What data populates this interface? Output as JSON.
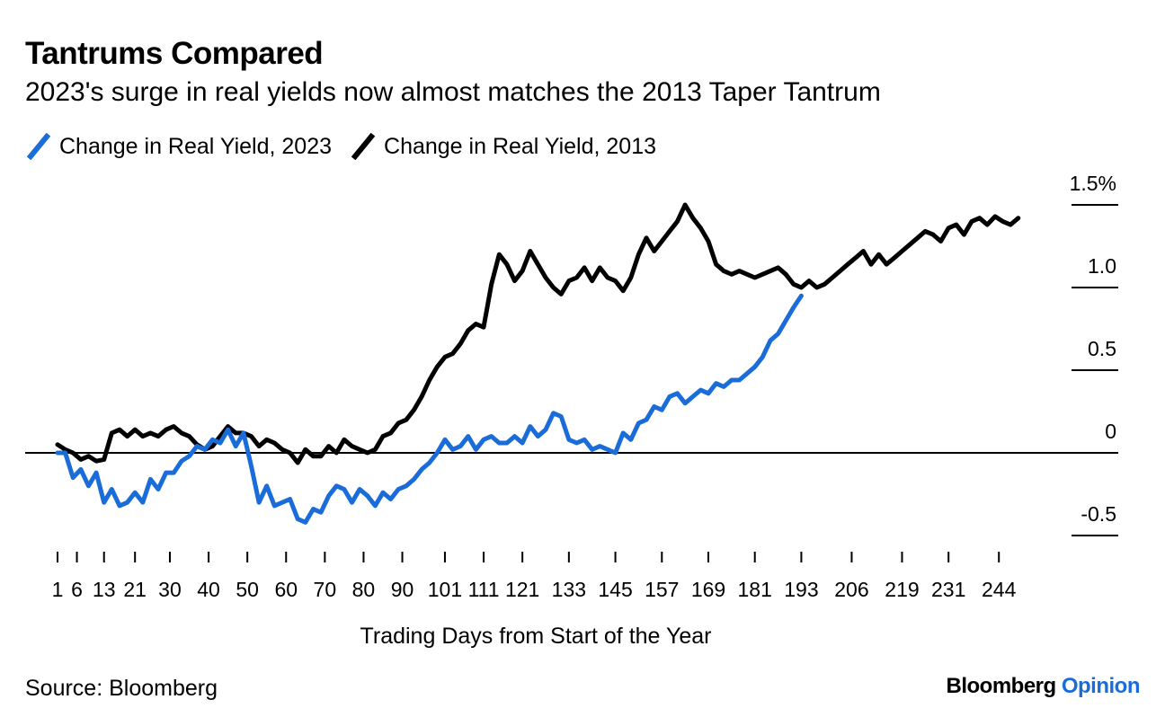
{
  "title": "Tantrums Compared",
  "subtitle": "2023's surge in real yields now almost matches the 2013 Taper Tantrum",
  "source": "Source: Bloomberg",
  "brand": {
    "name": "Bloomberg",
    "accent": "Opinion"
  },
  "colors": {
    "series_2023": "#1a6cd8",
    "series_2013": "#000000",
    "brand_accent": "#1a6cd8"
  },
  "chart_data": {
    "type": "line",
    "xlabel": "Trading Days from Start of the Year",
    "ylabel": "",
    "xlim": [
      1,
      253
    ],
    "ylim": [
      -0.5,
      1.5
    ],
    "grid": false,
    "legend_position": "top-left",
    "x_ticks": [
      1,
      6,
      13,
      21,
      30,
      40,
      50,
      60,
      70,
      80,
      90,
      101,
      111,
      121,
      133,
      145,
      157,
      169,
      181,
      193,
      206,
      219,
      231,
      244
    ],
    "y_ticks": [
      {
        "value": 1.5,
        "label": "1.5%"
      },
      {
        "value": 1.0,
        "label": "1.0"
      },
      {
        "value": 0.5,
        "label": "0.5"
      },
      {
        "value": 0,
        "label": "0"
      },
      {
        "value": -0.5,
        "label": "-0.5"
      }
    ],
    "series": [
      {
        "name": "Change in Real Yield, 2023",
        "x": [
          1,
          3,
          5,
          7,
          9,
          11,
          13,
          15,
          17,
          19,
          21,
          23,
          25,
          27,
          29,
          31,
          33,
          35,
          37,
          39,
          41,
          43,
          45,
          47,
          49,
          51,
          53,
          55,
          57,
          59,
          61,
          63,
          65,
          67,
          69,
          71,
          73,
          75,
          77,
          79,
          81,
          83,
          85,
          87,
          89,
          91,
          93,
          95,
          97,
          99,
          101,
          103,
          105,
          107,
          109,
          111,
          113,
          115,
          117,
          119,
          121,
          123,
          125,
          127,
          129,
          131,
          133,
          135,
          137,
          139,
          141,
          143,
          145,
          147,
          149,
          151,
          153,
          155,
          157,
          159,
          161,
          163,
          165,
          167,
          169,
          171,
          173,
          175,
          177,
          179,
          181,
          183,
          185,
          187,
          189,
          191,
          193
        ],
        "values": [
          0.0,
          0.0,
          -0.15,
          -0.1,
          -0.2,
          -0.12,
          -0.3,
          -0.22,
          -0.32,
          -0.3,
          -0.24,
          -0.3,
          -0.16,
          -0.22,
          -0.12,
          -0.12,
          -0.05,
          -0.02,
          0.04,
          0.02,
          0.08,
          0.06,
          0.14,
          0.04,
          0.12,
          -0.08,
          -0.3,
          -0.2,
          -0.32,
          -0.3,
          -0.28,
          -0.4,
          -0.42,
          -0.34,
          -0.36,
          -0.26,
          -0.2,
          -0.22,
          -0.3,
          -0.22,
          -0.26,
          -0.32,
          -0.24,
          -0.28,
          -0.22,
          -0.2,
          -0.16,
          -0.1,
          -0.06,
          0.0,
          0.08,
          0.02,
          0.04,
          0.1,
          0.02,
          0.08,
          0.1,
          0.06,
          0.06,
          0.1,
          0.06,
          0.16,
          0.1,
          0.14,
          0.24,
          0.22,
          0.08,
          0.06,
          0.08,
          0.02,
          0.04,
          0.02,
          0.0,
          0.12,
          0.08,
          0.18,
          0.2,
          0.28,
          0.26,
          0.34,
          0.36,
          0.3,
          0.34,
          0.38,
          0.36,
          0.42,
          0.4,
          0.44,
          0.44,
          0.48,
          0.52,
          0.58,
          0.68,
          0.72,
          0.8,
          0.88,
          0.95
        ]
      },
      {
        "name": "Change in Real Yield, 2013",
        "x": [
          1,
          3,
          5,
          7,
          9,
          11,
          13,
          15,
          17,
          19,
          21,
          23,
          25,
          27,
          29,
          31,
          33,
          35,
          37,
          39,
          41,
          43,
          45,
          47,
          49,
          51,
          53,
          55,
          57,
          59,
          61,
          63,
          65,
          67,
          69,
          71,
          73,
          75,
          77,
          79,
          81,
          83,
          85,
          87,
          89,
          91,
          93,
          95,
          97,
          99,
          101,
          103,
          105,
          107,
          109,
          111,
          113,
          115,
          117,
          119,
          121,
          123,
          125,
          127,
          129,
          131,
          133,
          135,
          137,
          139,
          141,
          143,
          145,
          147,
          149,
          151,
          153,
          155,
          157,
          159,
          161,
          163,
          165,
          167,
          169,
          171,
          173,
          175,
          177,
          179,
          181,
          183,
          185,
          187,
          189,
          191,
          193,
          195,
          197,
          199,
          201,
          203,
          205,
          207,
          209,
          211,
          213,
          215,
          217,
          219,
          221,
          223,
          225,
          227,
          229,
          231,
          233,
          235,
          237,
          239,
          241,
          243,
          245,
          247,
          249
        ],
        "values": [
          0.05,
          0.02,
          0.0,
          -0.04,
          -0.02,
          -0.05,
          -0.04,
          0.12,
          0.14,
          0.1,
          0.14,
          0.1,
          0.12,
          0.1,
          0.14,
          0.16,
          0.12,
          0.1,
          0.05,
          0.02,
          0.04,
          0.1,
          0.16,
          0.12,
          0.12,
          0.1,
          0.04,
          0.08,
          0.06,
          0.02,
          0.0,
          -0.06,
          0.02,
          -0.02,
          -0.02,
          0.04,
          0.0,
          0.08,
          0.04,
          0.02,
          0.0,
          0.02,
          0.1,
          0.12,
          0.18,
          0.2,
          0.26,
          0.34,
          0.44,
          0.52,
          0.58,
          0.6,
          0.66,
          0.74,
          0.78,
          0.76,
          1.02,
          1.2,
          1.14,
          1.04,
          1.1,
          1.22,
          1.14,
          1.06,
          1.0,
          0.96,
          1.04,
          1.06,
          1.12,
          1.04,
          1.12,
          1.06,
          1.04,
          0.98,
          1.06,
          1.2,
          1.3,
          1.22,
          1.28,
          1.34,
          1.4,
          1.5,
          1.42,
          1.36,
          1.28,
          1.14,
          1.1,
          1.08,
          1.1,
          1.08,
          1.06,
          1.08,
          1.1,
          1.12,
          1.08,
          1.02,
          1.0,
          1.04,
          1.0,
          1.02,
          1.06,
          1.1,
          1.14,
          1.18,
          1.22,
          1.14,
          1.2,
          1.14,
          1.18,
          1.22,
          1.26,
          1.3,
          1.34,
          1.32,
          1.28,
          1.36,
          1.38,
          1.32,
          1.4,
          1.42,
          1.38,
          1.43,
          1.4,
          1.38,
          1.42
        ]
      }
    ]
  }
}
